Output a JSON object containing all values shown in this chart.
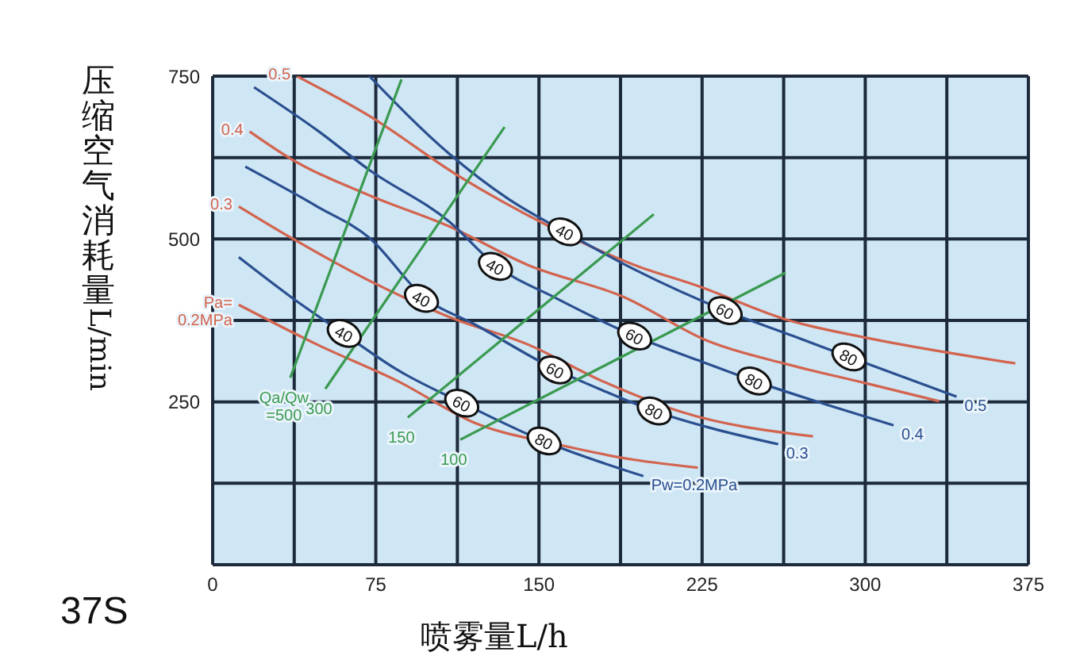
{
  "chart_data": {
    "type": "line",
    "xlabel": "喷雾量L/h",
    "ylabel": "压缩空气消耗量L/min",
    "xlim": [
      0,
      375
    ],
    "ylim": [
      0,
      750
    ],
    "xticks": [
      0,
      {
        "value": 37.5,
        "label": null
      },
      75,
      {
        "value": 112.5,
        "label": null
      },
      150,
      {
        "value": 187.5,
        "label": null
      },
      225,
      {
        "value": 262.5,
        "label": null
      },
      300,
      {
        "value": 337.5,
        "label": null
      },
      375
    ],
    "yticks": [
      {
        "value": 0,
        "label": null
      },
      {
        "value": 125,
        "label": null
      },
      250,
      {
        "value": 375,
        "label": null
      },
      500,
      {
        "value": 625,
        "label": null
      },
      750
    ],
    "grid": true,
    "marker": "none",
    "line_style": "solid",
    "series": [
      {
        "name": "0.5",
        "color": "#d2644e",
        "x": [
          38.7,
          72,
          112,
          155,
          194,
          223,
          265,
          301,
          369
        ],
        "values": [
          750,
          689,
          599,
          519,
          460,
          428,
          375,
          348,
          309
        ]
      },
      {
        "name": "0.4",
        "color": "#d2644e",
        "x": [
          17,
          36,
          72,
          109,
          145,
          189,
          228,
          265,
          301,
          334
        ],
        "values": [
          665,
          623,
          567,
          519,
          460,
          411,
          343,
          307,
          278,
          251
        ]
      },
      {
        "name": "0.3",
        "color": "#d2644e",
        "x": [
          12,
          36,
          72,
          109,
          145,
          179,
          216,
          276
        ],
        "values": [
          550,
          502,
          436,
          380,
          338,
          282,
          234,
          197
        ]
      },
      {
        "name": "Pa=\n0.2MPa",
        "color": "#d2644e",
        "x": [
          12,
          48,
          85,
          121,
          158,
          194,
          223
        ],
        "values": [
          399,
          338,
          282,
          217,
          185,
          161,
          149
        ]
      },
      {
        "name": "0.5",
        "color": "#2a4f8f",
        "x": [
          72,
          108.7,
          135.7,
          162,
          194,
          235.6,
          267,
          292.5,
          342
        ],
        "values": [
          750,
          631,
          562,
          511,
          453,
          390,
          351,
          319,
          258
        ]
      },
      {
        "name": "0.4",
        "color": "#2a4f8f",
        "x": [
          19,
          48,
          72,
          109,
          130,
          158,
          194,
          223,
          249,
          282,
          313
        ],
        "values": [
          733,
          667,
          606,
          526,
          460,
          409,
          351,
          314,
          282,
          246,
          214
        ]
      },
      {
        "name": "0.3",
        "color": "#2a4f8f",
        "x": [
          15,
          48,
          72,
          97,
          121,
          158,
          179,
          203,
          230,
          260
        ],
        "values": [
          611,
          550,
          502,
          411,
          368,
          299,
          268,
          236,
          209,
          185
        ]
      },
      {
        "name": "Pw=0.2MPa",
        "color": "#2a4f8f",
        "x": [
          12,
          36,
          61,
          85,
          115,
          152,
          198
        ],
        "values": [
          472,
          411,
          353,
          299,
          248,
          190,
          136
        ]
      },
      {
        "name": "Qa/Qw\n=500",
        "color": "#3a9a50",
        "x": [
          35.7,
          86.8
        ],
        "values": [
          287,
          745
        ]
      },
      {
        "name": "300",
        "color": "#3a9a50",
        "x": [
          51.8,
          134.2
        ],
        "values": [
          270,
          672
        ]
      },
      {
        "name": "150",
        "color": "#3a9a50",
        "x": [
          89.7,
          202.8
        ],
        "values": [
          226,
          538
        ]
      },
      {
        "name": "100",
        "color": "#3a9a50",
        "x": [
          113.8,
          263.3
        ],
        "values": [
          192,
          448
        ]
      }
    ],
    "annotations": [
      "37S",
      {
        "text": "40",
        "x": 162,
        "y": 511
      },
      {
        "text": "40",
        "x": 130,
        "y": 458
      },
      {
        "text": "40",
        "x": 96,
        "y": 409
      },
      {
        "text": "40",
        "x": 60.5,
        "y": 355
      },
      {
        "text": "60",
        "x": 235.6,
        "y": 390
      },
      {
        "text": "60",
        "x": 194,
        "y": 351
      },
      {
        "text": "60",
        "x": 157.5,
        "y": 299
      },
      {
        "text": "60",
        "x": 114.5,
        "y": 248
      },
      {
        "text": "80",
        "x": 292.5,
        "y": 319
      },
      {
        "text": "80",
        "x": 249,
        "y": 282
      },
      {
        "text": "80",
        "x": 203,
        "y": 236
      },
      {
        "text": "80",
        "x": 152.4,
        "y": 190
      }
    ]
  }
}
